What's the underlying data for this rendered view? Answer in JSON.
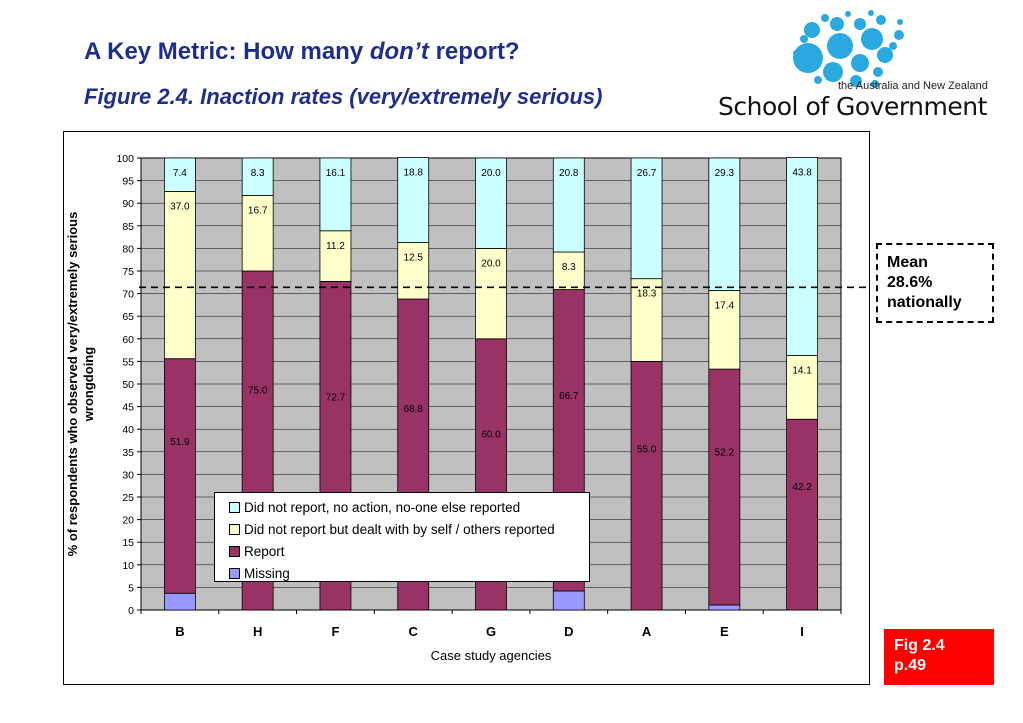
{
  "slide": {
    "title_main": "A Key Metric: How many ",
    "title_em": "don’t",
    "title_end": " report?",
    "subtitle": "Figure 2.4. Inaction rates (very/extremely serious)",
    "logo_tagline": "the Australia and New Zealand",
    "logo_name": "School of Government",
    "mean_line1": "Mean",
    "mean_line2": "28.6%",
    "mean_line3": "nationally",
    "fig_line1": "Fig 2.4",
    "fig_line2": "p.49"
  },
  "colors": {
    "title": "#1f2e8a",
    "plot_bg": "#c0c0c0",
    "did_not_report_no_action": "#ccffff",
    "did_not_report_dealt": "#ffffcc",
    "report": "#993366",
    "missing": "#9999ff",
    "fig_box": "#ff0000",
    "logo_dots": "#2aa9e0"
  },
  "chart_data": {
    "type": "bar",
    "stacked": true,
    "categories": [
      "B",
      "H",
      "F",
      "C",
      "G",
      "D",
      "A",
      "E",
      "I"
    ],
    "series": [
      {
        "name": "Missing",
        "values": [
          3.7,
          0,
          0,
          0,
          0,
          4.2,
          0,
          1.1,
          0
        ]
      },
      {
        "name": "Report",
        "values": [
          51.9,
          75.0,
          72.7,
          68.8,
          60.0,
          66.7,
          55.0,
          52.2,
          42.2
        ]
      },
      {
        "name": "Did not report but dealt with by self / others reported",
        "values": [
          37.0,
          16.7,
          11.2,
          12.5,
          20.0,
          8.3,
          18.3,
          17.4,
          14.1
        ]
      },
      {
        "name": "Did not report, no action, no-one else reported",
        "values": [
          7.4,
          8.3,
          16.1,
          18.8,
          20.0,
          20.8,
          26.7,
          29.3,
          43.8
        ]
      }
    ],
    "data_labels": [
      {
        "series": "Report",
        "labels": [
          "51.9",
          "75.0",
          "72.7",
          "68.8",
          "60.0",
          "66.7",
          "55.0",
          "52.2",
          "42.2"
        ]
      },
      {
        "series": "Did not report but dealt with by self / others reported",
        "labels": [
          "37.0",
          "16.7",
          "11.2",
          "12.5",
          "20.0",
          "8.3",
          "18.3",
          "17.4",
          "14.1"
        ]
      },
      {
        "series": "Did not report, no action, no-one else reported",
        "labels": [
          "7.4",
          "8.3",
          "16.1",
          "18.8",
          "20.0",
          "20.8",
          "26.7",
          "29.3",
          "43.8"
        ]
      }
    ],
    "legend": [
      "Did not report, no action, no-one else reported",
      "Did not report but dealt with by self / others reported",
      "Report",
      "Missing"
    ],
    "reference_line": {
      "y": 71.4,
      "style": "dashed",
      "label": "Mean 28.6% nationally"
    },
    "xlabel": "Case study agencies",
    "ylabel": "% of respondents who observed very/extremely serious wrongdoing",
    "ylim": [
      0,
      100
    ],
    "yticks": [
      0,
      5,
      10,
      15,
      20,
      25,
      30,
      35,
      40,
      45,
      50,
      55,
      60,
      65,
      70,
      75,
      80,
      85,
      90,
      95,
      100
    ],
    "grid": true,
    "legend_position": "bottom-left inside plot"
  }
}
